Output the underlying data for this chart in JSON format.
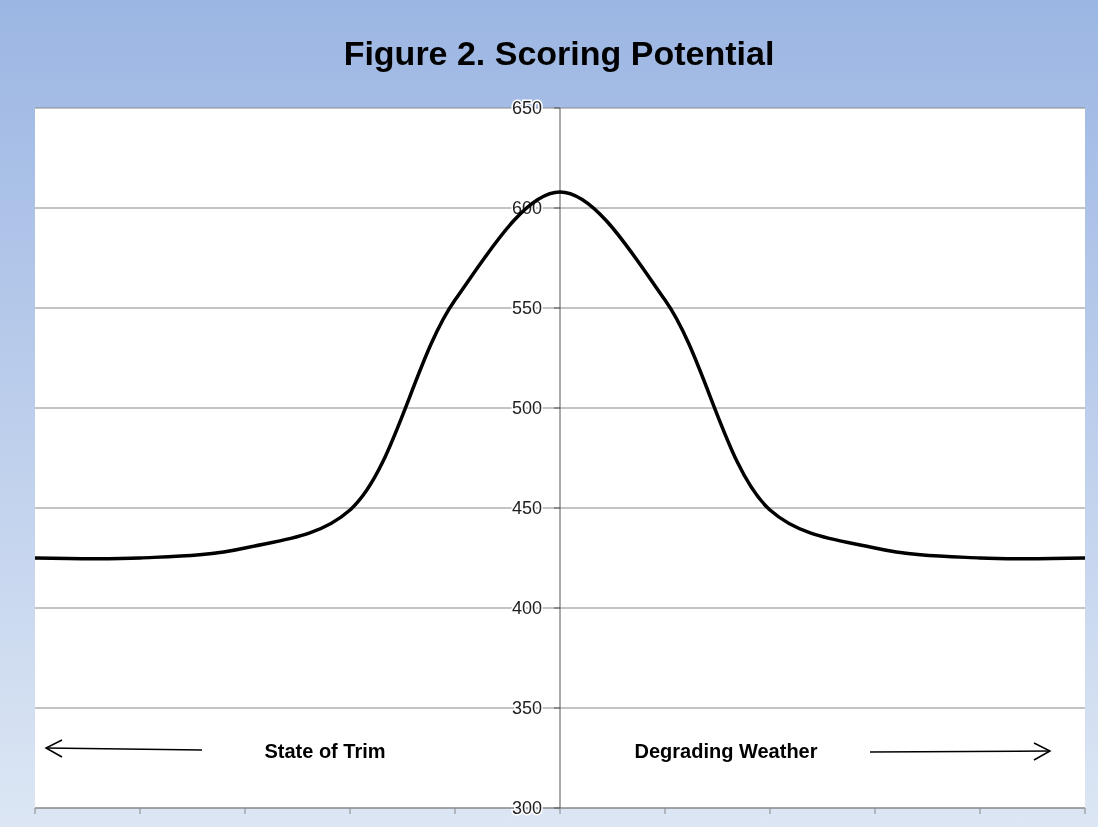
{
  "chart_data": {
    "type": "line",
    "title": "Figure 2. Scoring Potential",
    "categories": [
      null,
      null,
      null,
      null,
      null,
      null,
      null,
      null,
      null,
      null,
      null
    ],
    "series": [
      {
        "color": "#000000",
        "values": [
          425,
          425,
          430,
          449,
          554,
          608,
          554,
          449,
          430,
          425,
          425
        ]
      }
    ],
    "ylim": [
      300,
      650
    ],
    "yticks": [
      300,
      350,
      400,
      450,
      500,
      550,
      600,
      650
    ],
    "grid": "y",
    "marker": "none",
    "line_style": "solid",
    "annotations": [
      "State of Trim",
      "Degrading Weather"
    ]
  }
}
